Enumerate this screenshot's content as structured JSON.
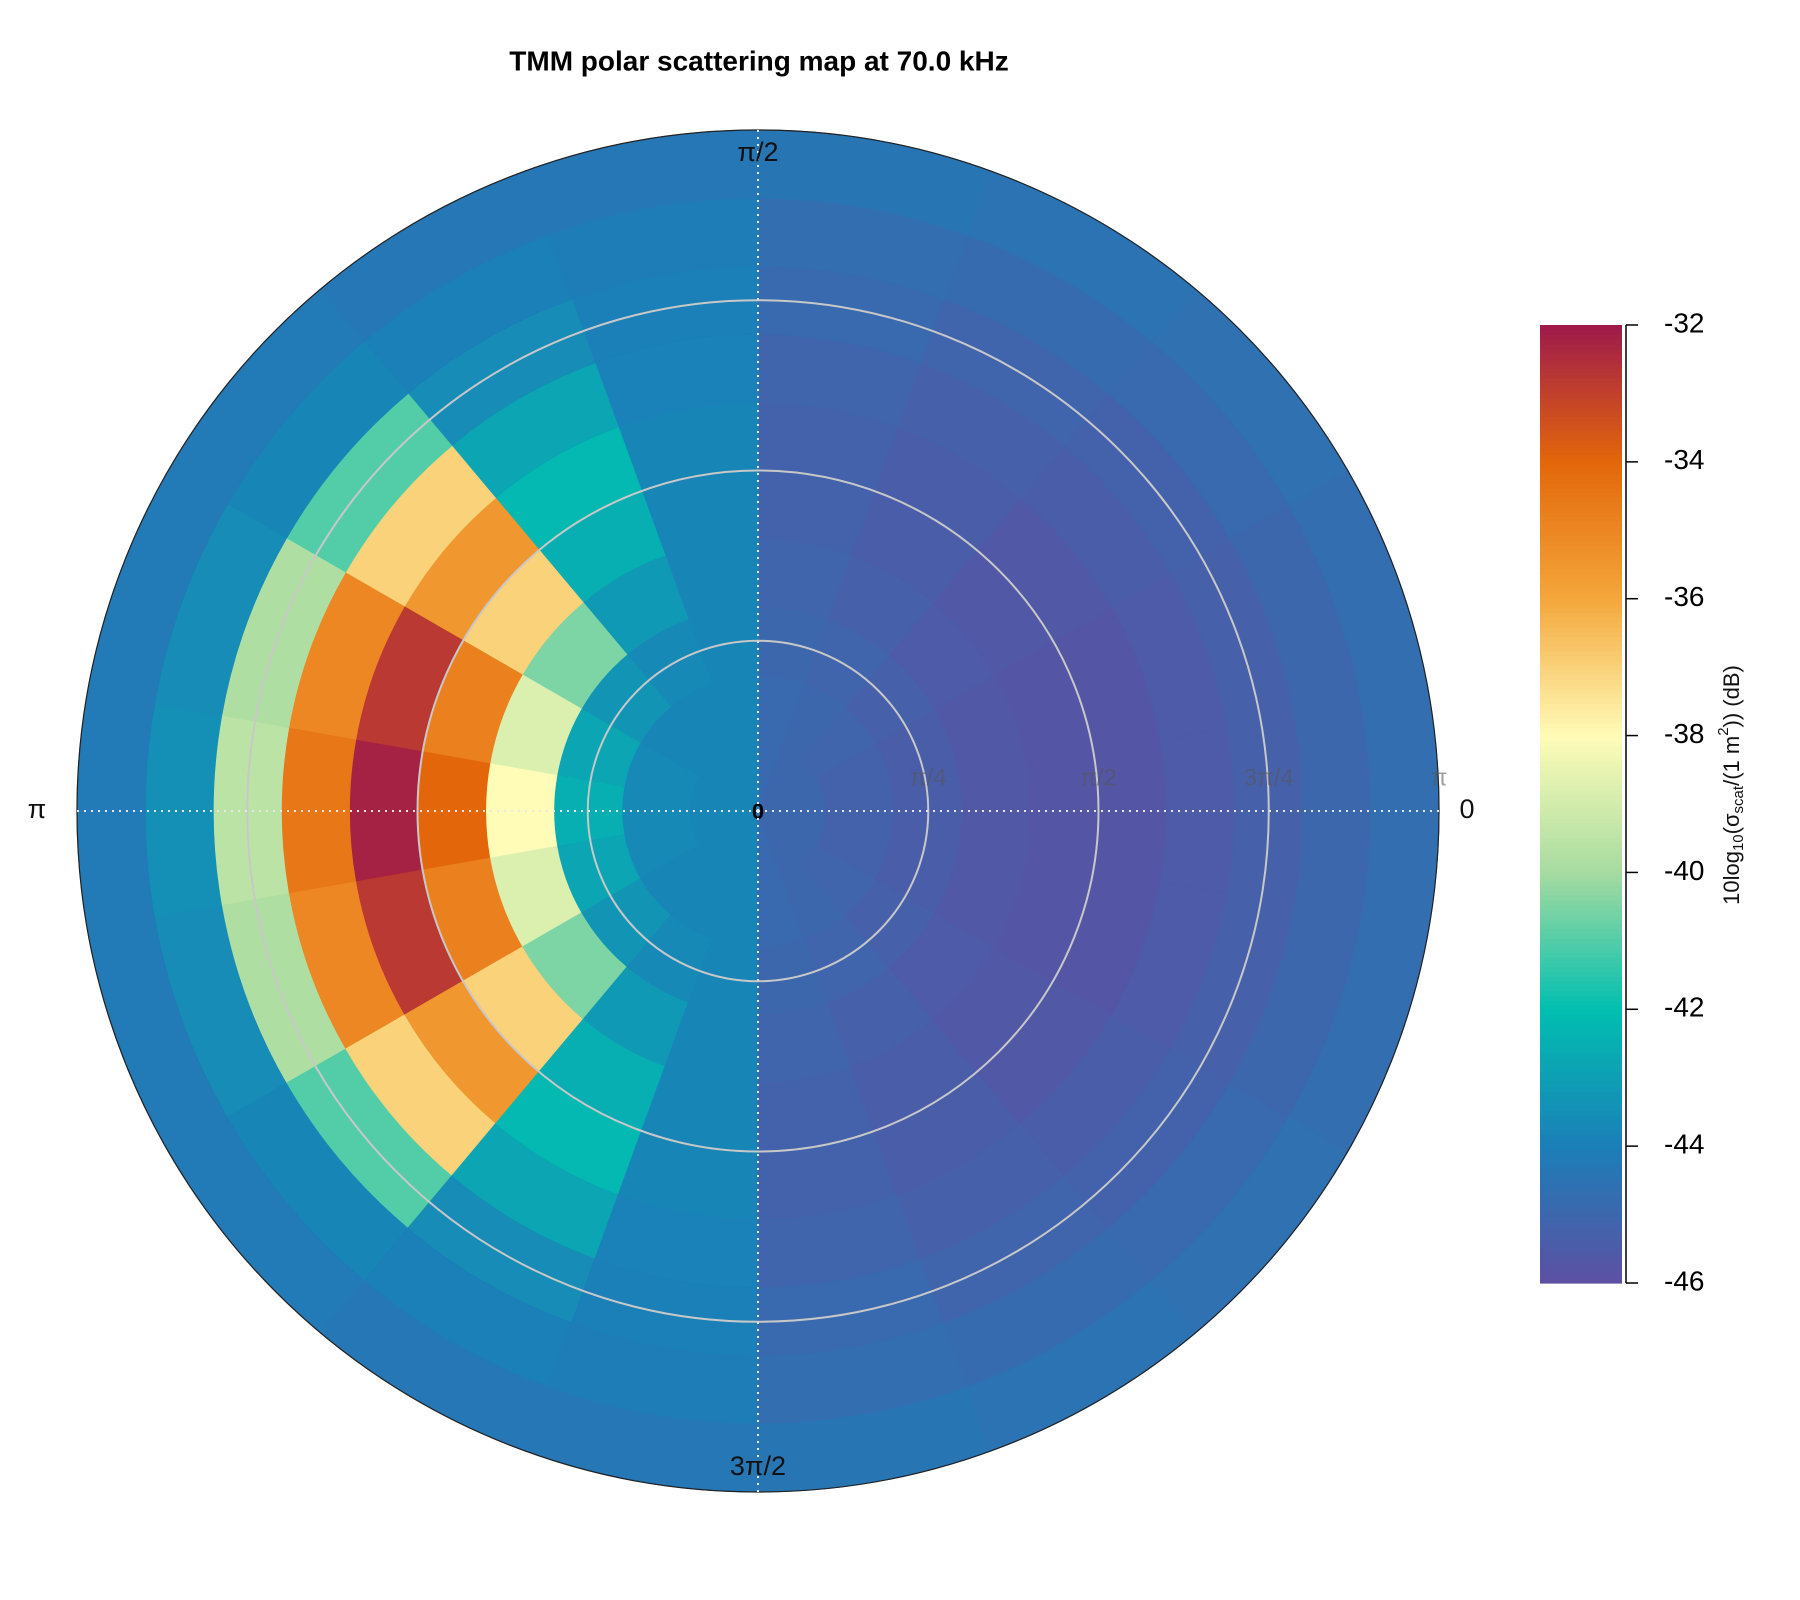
{
  "chart_data": {
    "type": "polar-heatmap",
    "title": "TMM polar scattering map at 70.0 kHz",
    "theta": [
      0,
      0.3491,
      0.6981,
      1.0472,
      1.3963,
      1.7453,
      2.0944,
      2.4435,
      2.7925,
      3.1416,
      3.4907,
      3.8397,
      4.1888,
      4.5379,
      4.8869,
      5.236,
      5.5851,
      5.9341
    ],
    "r": [
      0.1571,
      0.4712,
      0.7854,
      1.0996,
      1.4137,
      1.7279,
      2.042,
      2.3562,
      2.6704,
      2.9845
    ],
    "values": [
      [
        -45.0,
        -45.2,
        -45.4,
        -45.6,
        -45.7,
        -45.7,
        -45.5,
        -45.3,
        -45.0,
        -44.7
      ],
      [
        -45.0,
        -45.2,
        -45.4,
        -45.6,
        -45.7,
        -45.7,
        -45.5,
        -45.3,
        -45.0,
        -44.7
      ],
      [
        -45.0,
        -45.1,
        -45.3,
        -45.5,
        -45.6,
        -45.6,
        -45.4,
        -45.2,
        -44.9,
        -44.6
      ],
      [
        -45.0,
        -45.0,
        -45.1,
        -45.3,
        -45.4,
        -45.4,
        -45.3,
        -45.1,
        -44.8,
        -44.5
      ],
      [
        -44.9,
        -44.9,
        -45.0,
        -45.1,
        -45.2,
        -45.2,
        -45.1,
        -44.9,
        -44.7,
        -44.4
      ],
      [
        -43.8,
        -43.8,
        -43.8,
        -43.8,
        -43.8,
        -43.8,
        -43.9,
        -44.0,
        -44.1,
        -44.3
      ],
      [
        -43.8,
        -43.8,
        -43.7,
        -43.2,
        -42.5,
        -42.2,
        -42.8,
        -43.6,
        -44.0,
        -44.3
      ],
      [
        -43.8,
        -43.8,
        -43.3,
        -40.5,
        -37.0,
        -35.5,
        -37.0,
        -41.0,
        -43.8,
        -44.2
      ],
      [
        -43.8,
        -43.7,
        -42.8,
        -38.8,
        -34.8,
        -32.8,
        -35.0,
        -39.8,
        -43.6,
        -44.2
      ],
      [
        -43.8,
        -43.7,
        -42.5,
        -38.0,
        -34.0,
        -32.2,
        -34.5,
        -39.5,
        -43.5,
        -44.2
      ],
      [
        -43.8,
        -43.7,
        -42.8,
        -38.8,
        -34.8,
        -32.8,
        -35.0,
        -39.8,
        -43.6,
        -44.2
      ],
      [
        -43.8,
        -43.8,
        -43.3,
        -40.5,
        -37.0,
        -35.5,
        -37.0,
        -41.0,
        -43.8,
        -44.2
      ],
      [
        -43.8,
        -43.8,
        -43.7,
        -43.2,
        -42.5,
        -42.2,
        -42.8,
        -43.6,
        -44.0,
        -44.3
      ],
      [
        -43.8,
        -43.8,
        -43.8,
        -43.8,
        -43.8,
        -43.8,
        -43.9,
        -44.0,
        -44.1,
        -44.3
      ],
      [
        -44.9,
        -44.9,
        -45.0,
        -45.1,
        -45.2,
        -45.2,
        -45.1,
        -44.9,
        -44.7,
        -44.4
      ],
      [
        -45.0,
        -45.0,
        -45.1,
        -45.3,
        -45.4,
        -45.4,
        -45.3,
        -45.1,
        -44.8,
        -44.5
      ],
      [
        -45.0,
        -45.1,
        -45.3,
        -45.5,
        -45.6,
        -45.6,
        -45.4,
        -45.2,
        -44.9,
        -44.6
      ],
      [
        -45.0,
        -45.2,
        -45.4,
        -45.6,
        -45.7,
        -45.7,
        -45.5,
        -45.3,
        -45.0,
        -44.7
      ]
    ],
    "rlim": [
      0,
      3.1416
    ],
    "rticks": [
      {
        "value": 0,
        "label": "0"
      },
      {
        "value": 0.7854,
        "label": "π/4"
      },
      {
        "value": 1.5708,
        "label": "π/2"
      },
      {
        "value": 2.3562,
        "label": "3π/4"
      },
      {
        "value": 3.1416,
        "label": "π"
      }
    ],
    "thetaticks": [
      0,
      {
        "value": 1.5708,
        "label": "π/2"
      },
      {
        "value": 3.1416,
        "label": "π"
      },
      {
        "value": 4.7124,
        "label": "3π/2"
      }
    ],
    "zlim": [
      -46,
      -32
    ],
    "zticks": [
      -32,
      -34,
      -36,
      -38,
      -40,
      -42,
      -44,
      -46
    ],
    "colormap": [
      "#5e4fa2",
      "#1b7fb8",
      "#00bfb0",
      "#a6dba0",
      "#fffcb8",
      "#f4a73c",
      "#e3670a",
      "#9e1a4c"
    ],
    "colorbar_label": [
      "10log",
      "10",
      "(σ",
      "scat",
      "/(1 m",
      "2",
      ")) (dB)"
    ],
    "grid": true
  }
}
